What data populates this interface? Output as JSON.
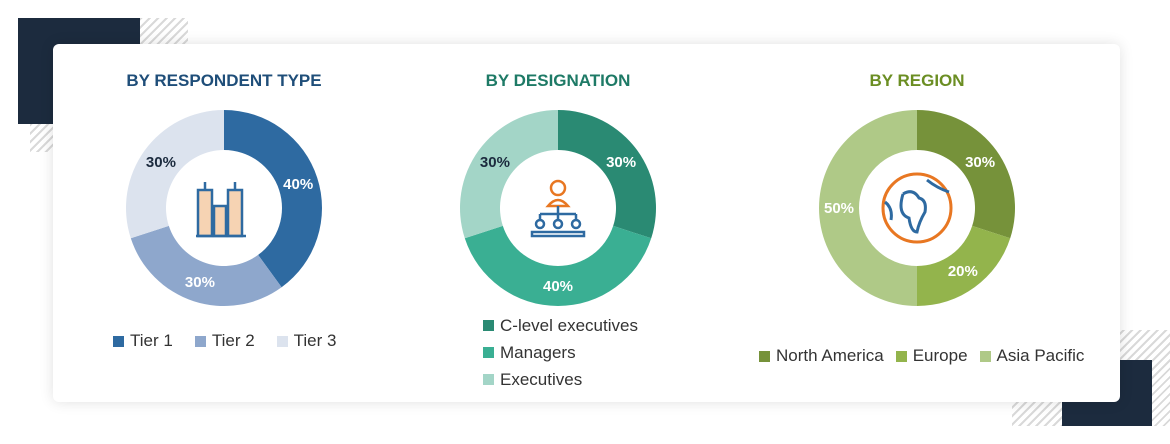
{
  "chart_data": [
    {
      "type": "pie",
      "title": "BY RESPONDENT TYPE",
      "title_color": "#1f4e79",
      "icon": "buildings-icon",
      "legend": "bottom",
      "categories": [
        "Tier 1",
        "Tier 2",
        "Tier 3"
      ],
      "values": [
        40,
        30,
        30
      ],
      "labels": [
        "40%",
        "30%",
        "30%"
      ],
      "colors": [
        "#2e6aa1",
        "#8ea7cc",
        "#dce3ee"
      ],
      "label_colors": [
        "#fff",
        "#fff",
        "#1c2b3e"
      ]
    },
    {
      "type": "pie",
      "title": "BY DESIGNATION",
      "title_color": "#1e7a66",
      "icon": "org-hierarchy-icon",
      "legend": "bottom",
      "categories": [
        "C-level executives",
        "Managers",
        "Executives"
      ],
      "values": [
        30,
        40,
        30
      ],
      "labels": [
        "30%",
        "40%",
        "30%"
      ],
      "colors": [
        "#2a8a73",
        "#3aaf93",
        "#a3d5c7"
      ],
      "label_colors": [
        "#fff",
        "#fff",
        "#1c2b3e"
      ]
    },
    {
      "type": "pie",
      "title": "BY REGION",
      "title_color": "#6b8e23",
      "icon": "globe-icon",
      "legend": "bottom",
      "categories": [
        "North America",
        "Europe",
        "Asia Pacific"
      ],
      "values": [
        30,
        20,
        50
      ],
      "labels": [
        "30%",
        "20%",
        "50%"
      ],
      "colors": [
        "#76923a",
        "#93b44c",
        "#afc987"
      ],
      "label_colors": [
        "#fff",
        "#fff",
        "#fff"
      ]
    }
  ]
}
